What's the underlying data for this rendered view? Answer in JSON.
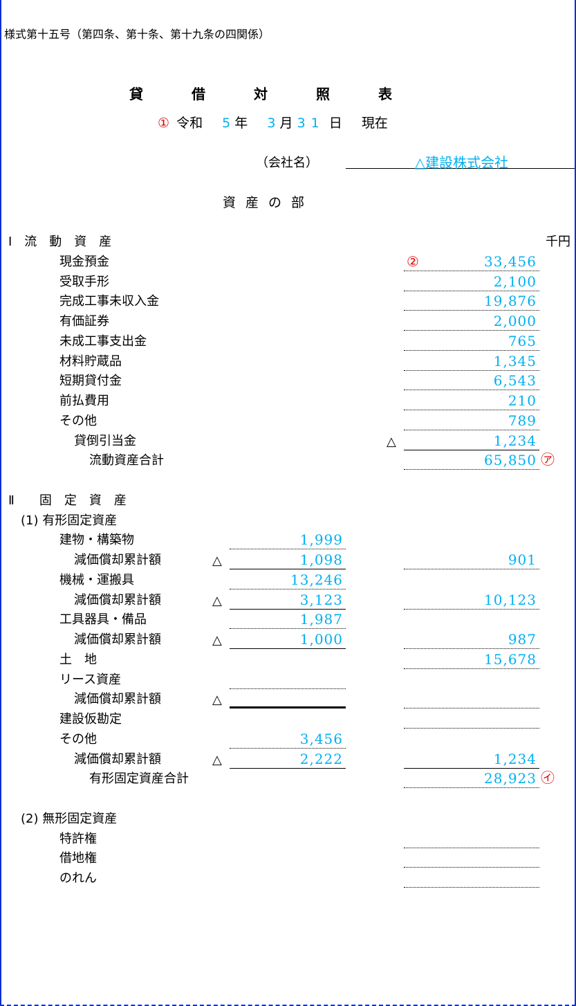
{
  "header": {
    "form_number": "様式第十五号（第四条、第十条、第十九条の四関係）"
  },
  "title": [
    "貸",
    "借",
    "対",
    "照",
    "表"
  ],
  "date": {
    "marker": "①",
    "era": "令和",
    "year": "5",
    "year_unit": "年",
    "month": "3",
    "month_unit": "月",
    "day": "31",
    "day_unit": "日",
    "suffix": "現在"
  },
  "company": {
    "label": "（会社名）",
    "name": "△建設株式会社"
  },
  "section_title": "資産の部",
  "unit": "千円",
  "rows": [
    {
      "label": "Ⅰ　流　動　資　産",
      "level": 0,
      "unit": true
    },
    {
      "label": "現金預金",
      "level": 1,
      "right": {
        "value": "33,456",
        "line": "dotted"
      },
      "pre_marker": "②"
    },
    {
      "label": "受取手形",
      "level": 1,
      "right": {
        "value": "2,100",
        "line": "dotted"
      }
    },
    {
      "label": "完成工事未収入金",
      "level": 1,
      "right": {
        "value": "19,876",
        "line": "dotted"
      }
    },
    {
      "label": "有価証券",
      "level": 1,
      "right": {
        "value": "2,000",
        "line": "dotted"
      }
    },
    {
      "label": "未成工事支出金",
      "level": 1,
      "right": {
        "value": "765",
        "line": "dotted"
      }
    },
    {
      "label": "材料貯蔵品",
      "level": 1,
      "right": {
        "value": "1,345",
        "line": "dotted"
      }
    },
    {
      "label": "短期貸付金",
      "level": 1,
      "right": {
        "value": "6,543",
        "line": "dotted"
      }
    },
    {
      "label": "前払費用",
      "level": 1,
      "right": {
        "value": "210",
        "line": "dotted"
      }
    },
    {
      "label": "その他",
      "level": 1,
      "right": {
        "value": "789",
        "line": "dotted"
      }
    },
    {
      "label": "貸倒引当金",
      "level": 2,
      "right": {
        "value": "1,234",
        "line": "solid",
        "triangle": "△"
      }
    },
    {
      "label": "流動資産合計",
      "level": 3,
      "right": {
        "value": "65,850",
        "line": "dotted"
      },
      "marker": "㋐"
    },
    {
      "label": "",
      "level": 0
    },
    {
      "label": "Ⅱ　　固　定　資　産",
      "level": 0
    },
    {
      "label": "(1) 有形固定資産",
      "level": 4
    },
    {
      "label": "建物・構築物",
      "level": 1,
      "mid": {
        "value": "1,999",
        "line": "dotted"
      }
    },
    {
      "label": "減価償却累計額",
      "level": 2,
      "mid": {
        "value": "1,098",
        "line": "solid",
        "triangle": "△"
      },
      "right": {
        "value": "901",
        "line": "dotted"
      }
    },
    {
      "label": "機械・運搬具",
      "level": 1,
      "mid": {
        "value": "13,246",
        "line": "dotted"
      }
    },
    {
      "label": "減価償却累計額",
      "level": 2,
      "mid": {
        "value": "3,123",
        "line": "solid",
        "triangle": "△"
      },
      "right": {
        "value": "10,123",
        "line": "dotted"
      }
    },
    {
      "label": "工具器具・備品",
      "level": 1,
      "mid": {
        "value": "1,987",
        "line": "dotted"
      }
    },
    {
      "label": "減価償却累計額",
      "level": 2,
      "mid": {
        "value": "1,000",
        "line": "solid",
        "triangle": "△"
      },
      "right": {
        "value": "987",
        "line": "dotted"
      }
    },
    {
      "label": "土　地",
      "level": 1,
      "right": {
        "value": "15,678",
        "line": "dotted"
      }
    },
    {
      "label": "リース資産",
      "level": 1,
      "mid": {
        "value": "",
        "line": "dotted"
      }
    },
    {
      "label": "減価償却累計額",
      "level": 2,
      "mid": {
        "value": "",
        "line": "thick",
        "triangle": "△"
      },
      "right": {
        "value": "",
        "line": "dotted"
      }
    },
    {
      "label": "建設仮勘定",
      "level": 1,
      "right": {
        "value": "",
        "line": "dotted"
      }
    },
    {
      "label": "その他",
      "level": 1,
      "mid": {
        "value": "3,456",
        "line": "dotted"
      }
    },
    {
      "label": "減価償却累計額",
      "level": 2,
      "mid": {
        "value": "2,222",
        "line": "solid",
        "triangle": "△"
      },
      "right": {
        "value": "1,234",
        "line": "solid"
      }
    },
    {
      "label": "有形固定資産合計",
      "level": 3,
      "right": {
        "value": "28,923",
        "line": "dotted"
      },
      "marker": "㋑"
    },
    {
      "label": "",
      "level": 0
    },
    {
      "label": "(2) 無形固定資産",
      "level": 4
    },
    {
      "label": "特許権",
      "level": 1,
      "right": {
        "value": "",
        "line": "dotted"
      }
    },
    {
      "label": "借地権",
      "level": 1,
      "right": {
        "value": "",
        "line": "dotted"
      }
    },
    {
      "label": "のれん",
      "level": 1,
      "right": {
        "value": "",
        "line": "dotted"
      }
    }
  ]
}
